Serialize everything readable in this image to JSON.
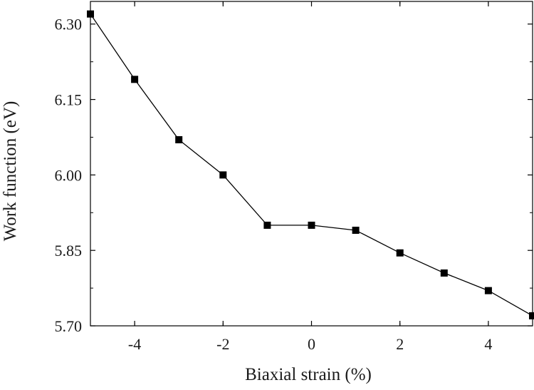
{
  "chart_data": {
    "type": "line",
    "title": "",
    "xlabel": "Biaxial strain (%)",
    "ylabel": "Work function (eV)",
    "xlim": [
      -5,
      5
    ],
    "ylim": [
      5.7,
      6.345
    ],
    "x_ticks": [
      -4,
      -2,
      0,
      2,
      4
    ],
    "x_tick_labels": [
      "-4",
      "-2",
      "0",
      "2",
      "4"
    ],
    "y_ticks": [
      5.7,
      5.85,
      6.0,
      6.15,
      6.3
    ],
    "y_tick_labels": [
      "5.70",
      "5.85",
      "6.00",
      "6.15",
      "6.30"
    ],
    "grid": false,
    "legend": "none",
    "series": [
      {
        "color": "#000000",
        "marker": "square",
        "x": [
          -5,
          -4,
          -3,
          -2,
          -1,
          0,
          1,
          2,
          3,
          4,
          5
        ],
        "y": [
          6.32,
          6.19,
          6.07,
          6.0,
          5.9,
          5.9,
          5.89,
          5.845,
          5.805,
          5.77,
          5.72
        ]
      }
    ]
  }
}
